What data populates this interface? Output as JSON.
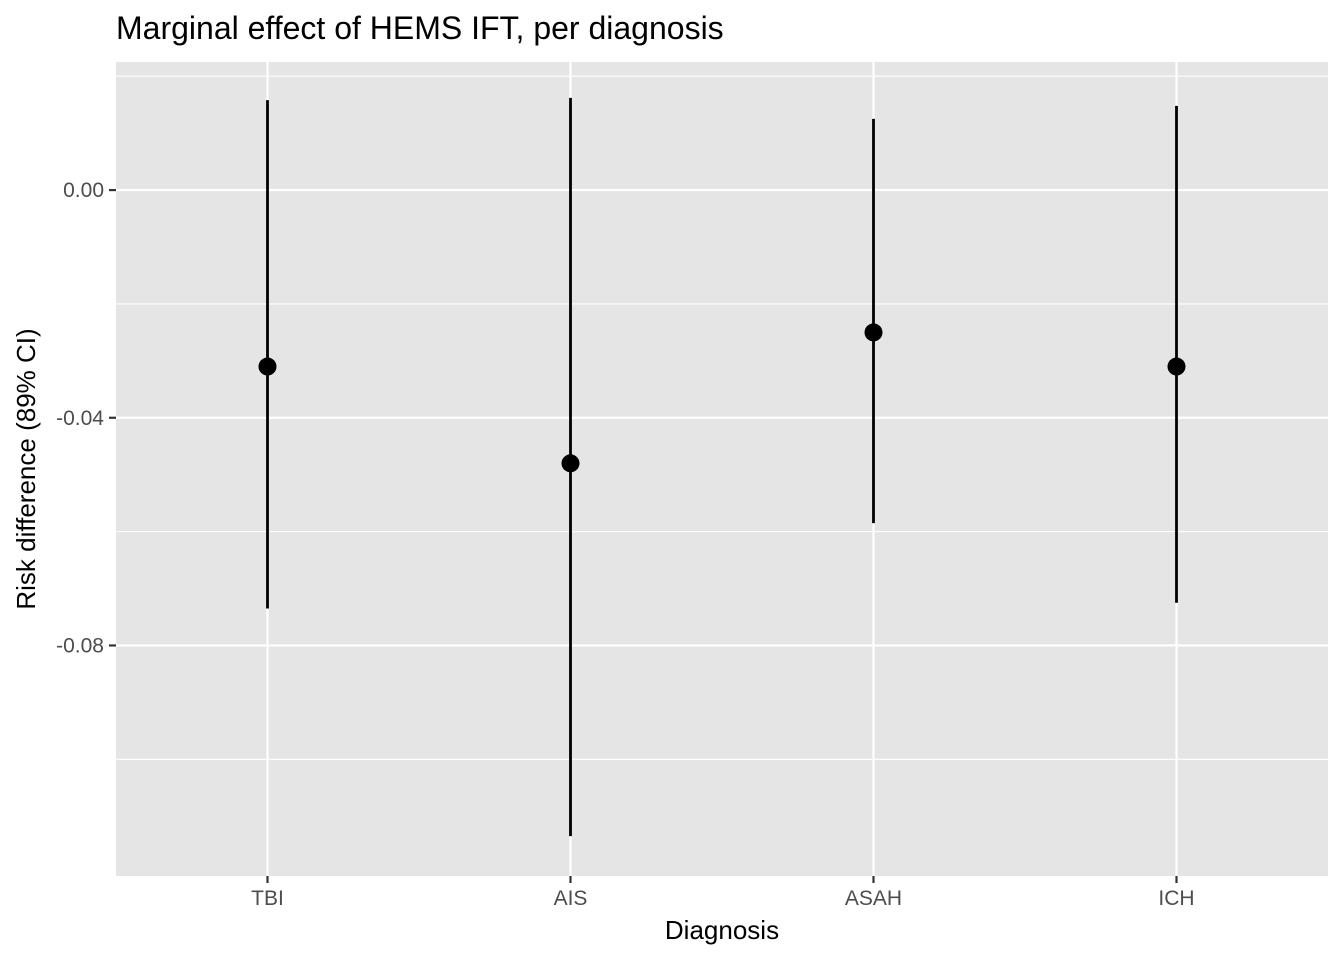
{
  "chart_data": {
    "type": "scatter",
    "subtype": "point-range",
    "title": "Marginal effect of HEMS IFT, per diagnosis",
    "xlabel": "Diagnosis",
    "ylabel": "Risk difference (89% CI)",
    "categories": [
      "TBI",
      "AIS",
      "ASAH",
      "ICH"
    ],
    "series": [
      {
        "estimate": [
          -0.031,
          -0.048,
          -0.025,
          -0.031
        ],
        "lower": [
          -0.0735,
          -0.1135,
          -0.0585,
          -0.0725
        ],
        "upper": [
          0.0158,
          0.0162,
          0.0125,
          0.0148
        ]
      }
    ],
    "ylim": [
      -0.1205,
      0.0225
    ],
    "yticks": [
      0.0,
      -0.04,
      -0.08
    ],
    "ytick_labels": [
      "0.00",
      "-0.04",
      "-0.08"
    ],
    "grid": true,
    "legend": "none",
    "colors": {
      "panel_background": "#E5E5E5",
      "grid_line": "#FFFFFF",
      "mark": "#000000",
      "tick_text": "#4D4D4D",
      "tick_mark": "#333333"
    }
  }
}
